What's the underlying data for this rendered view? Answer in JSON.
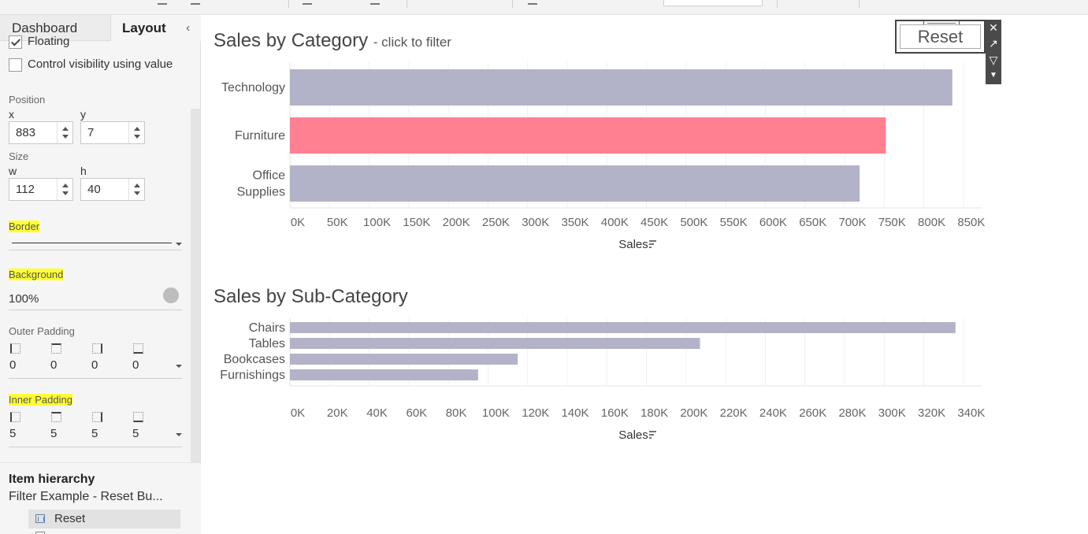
{
  "tabs": {
    "dashboard": "Dashboard",
    "layout": "Layout"
  },
  "options": {
    "floating": "Floating",
    "control_visibility": "Control visibility using value"
  },
  "position": {
    "label": "Position",
    "x_label": "x",
    "y_label": "y",
    "x_value": "883",
    "y_value": "7"
  },
  "size": {
    "label": "Size",
    "w_label": "w",
    "h_label": "h",
    "w_value": "112",
    "h_value": "40"
  },
  "border": {
    "label": "Border"
  },
  "background": {
    "label": "Background",
    "opacity": "100%",
    "color": "#bdbdbd"
  },
  "outer_padding": {
    "label": "Outer Padding",
    "left": "0",
    "top": "0",
    "right": "0",
    "bottom": "0"
  },
  "inner_padding": {
    "label": "Inner Padding",
    "left": "5",
    "top": "5",
    "right": "5",
    "bottom": "5"
  },
  "hierarchy": {
    "title": "Item hierarchy",
    "dashboard_name": "Filter Example - Reset Bu...",
    "selected_item": "Reset"
  },
  "reset_button": {
    "label": "Reset"
  },
  "colors": {
    "bar": "#b2b3c8",
    "highlight": "#ff8091",
    "annotation_highlight": "#ffff33"
  },
  "charts": {
    "category": {
      "title": "Sales by Category",
      "subtitle": "- click to filter"
    },
    "subcategory": {
      "title": "Sales by Sub-Category"
    }
  },
  "chart_data": [
    {
      "type": "bar",
      "orientation": "horizontal",
      "title": "Sales by Category",
      "categories": [
        "Technology",
        "Furniture",
        "Office Supplies"
      ],
      "category_lines": [
        [
          "Technology"
        ],
        [
          "Furniture"
        ],
        [
          "Office",
          "Supplies"
        ]
      ],
      "values": [
        836000,
        752000,
        719000
      ],
      "highlighted": "Furniture",
      "xlabel": "Sales",
      "xlim": [
        0,
        875000
      ],
      "ticks": [
        0,
        50000,
        100000,
        150000,
        200000,
        250000,
        300000,
        350000,
        400000,
        450000,
        500000,
        550000,
        600000,
        650000,
        700000,
        750000,
        800000,
        850000
      ],
      "tick_labels": [
        "0K",
        "50K",
        "100K",
        "150K",
        "200K",
        "250K",
        "300K",
        "350K",
        "400K",
        "450K",
        "500K",
        "550K",
        "600K",
        "650K",
        "700K",
        "750K",
        "800K",
        "850K"
      ],
      "grid": true
    },
    {
      "type": "bar",
      "orientation": "horizontal",
      "title": "Sales by Sub-Category",
      "categories": [
        "Chairs",
        "Tables",
        "Bookcases",
        "Furnishings"
      ],
      "values": [
        336000,
        207000,
        115000,
        95000
      ],
      "xlabel": "Sales",
      "xlim": [
        0,
        350000
      ],
      "ticks": [
        0,
        20000,
        40000,
        60000,
        80000,
        100000,
        120000,
        140000,
        160000,
        180000,
        200000,
        220000,
        240000,
        260000,
        280000,
        300000,
        320000,
        340000
      ],
      "tick_labels": [
        "0K",
        "20K",
        "40K",
        "60K",
        "80K",
        "100K",
        "120K",
        "140K",
        "160K",
        "180K",
        "200K",
        "220K",
        "240K",
        "260K",
        "280K",
        "300K",
        "320K",
        "340K"
      ],
      "grid": true
    }
  ]
}
